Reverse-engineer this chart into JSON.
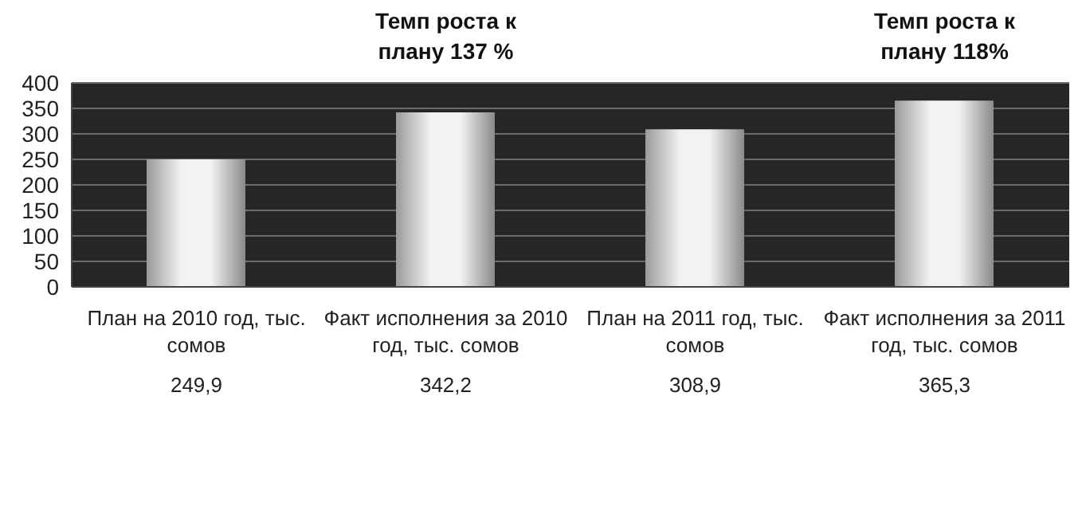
{
  "chart_data": {
    "type": "bar",
    "categories": [
      "План на 2010 год, тыс. сомов",
      "Факт исполнения за 2010 год, тыс. сомов",
      "План на 2011 год, тыс. сомов",
      "Факт исполнения  за 2011 год, тыс. сомов"
    ],
    "values": [
      249.9,
      342.2,
      308.9,
      365.3
    ],
    "value_labels": [
      "249,9",
      "342,2",
      "308,9",
      "365,3"
    ],
    "color": "#f2f2f2",
    "ylim": [
      0,
      400
    ],
    "yticks": [
      0,
      50,
      100,
      150,
      200,
      250,
      300,
      350,
      400
    ],
    "grid": "y",
    "annotations": [
      "Темп роста к плану 137 %",
      "Темп роста к плану 118%"
    ]
  }
}
